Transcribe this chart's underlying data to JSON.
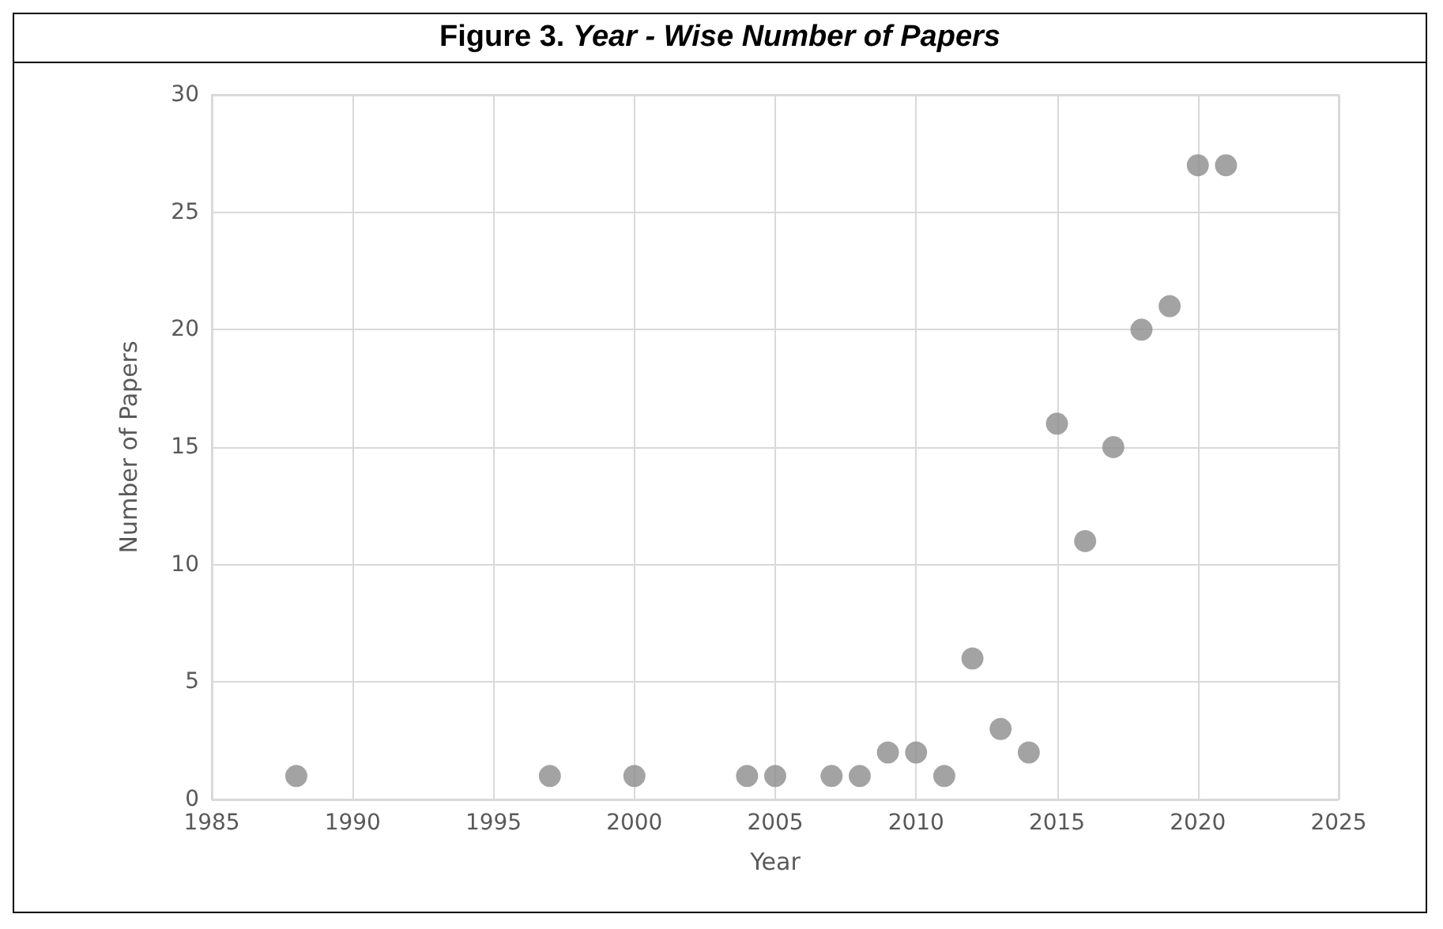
{
  "chart_data": {
    "type": "scatter",
    "title": "Figure 3. Year - Wise Number of Papers",
    "xlabel": "Year",
    "ylabel": "Number of Papers",
    "x": [
      1988,
      1997,
      2000,
      2004,
      2005,
      2007,
      2008,
      2009,
      2010,
      2011,
      2012,
      2013,
      2014,
      2015,
      2016,
      2017,
      2018,
      2019,
      2020,
      2021
    ],
    "series": [
      {
        "color": "#8c8c8c",
        "values": [
          1,
          1,
          1,
          1,
          1,
          1,
          1,
          2,
          2,
          1,
          6,
          3,
          2,
          16,
          11,
          15,
          20,
          21,
          27,
          27
        ]
      }
    ],
    "xlim": [
      1985,
      2025
    ],
    "xticks": [
      1985,
      1990,
      1995,
      2000,
      2005,
      2010,
      2015,
      2020,
      2025
    ],
    "ylim": [
      0,
      30
    ],
    "yticks": [
      0,
      5,
      10,
      15,
      20,
      25,
      30
    ],
    "grid": true,
    "marker": "circle"
  }
}
